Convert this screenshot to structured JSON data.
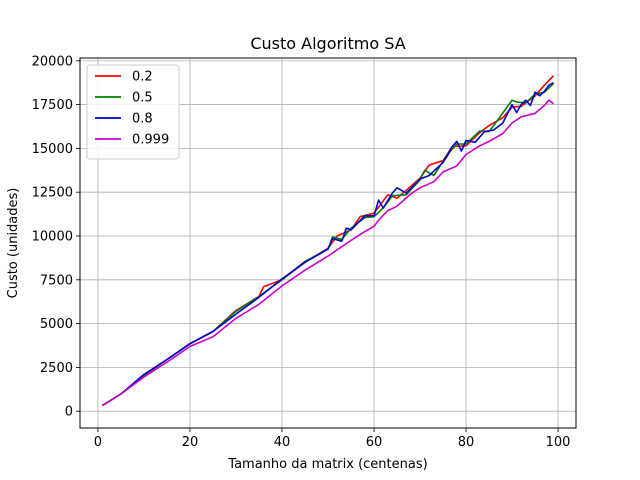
{
  "chart_data": {
    "type": "line",
    "title": "Custo Algoritmo SA",
    "xlabel": "Tamanho da matrix (centenas)",
    "ylabel": "Custo (unidades)",
    "xlim": [
      -3.9,
      103.9
    ],
    "ylim": [
      -959,
      20159
    ],
    "xticks": [
      0,
      20,
      40,
      60,
      80,
      100
    ],
    "yticks": [
      0,
      2500,
      5000,
      7500,
      10000,
      12500,
      15000,
      17500,
      20000
    ],
    "grid": true,
    "legend_position": "top-left",
    "series": [
      {
        "name": "0.2",
        "color": "#ff0000",
        "points": [
          [
            1,
            330
          ],
          [
            5,
            980
          ],
          [
            10,
            2050
          ],
          [
            15,
            2950
          ],
          [
            20,
            3850
          ],
          [
            25,
            4550
          ],
          [
            30,
            5750
          ],
          [
            35,
            6550
          ],
          [
            36,
            7100
          ],
          [
            40,
            7500
          ],
          [
            45,
            8500
          ],
          [
            50,
            9300
          ],
          [
            52,
            10000
          ],
          [
            55,
            10350
          ],
          [
            57,
            11100
          ],
          [
            60,
            11300
          ],
          [
            63,
            12350
          ],
          [
            65,
            12150
          ],
          [
            70,
            13300
          ],
          [
            72,
            14050
          ],
          [
            75,
            14300
          ],
          [
            77,
            15100
          ],
          [
            80,
            15150
          ],
          [
            83,
            15900
          ],
          [
            85,
            16300
          ],
          [
            88,
            16750
          ],
          [
            90,
            17350
          ],
          [
            92,
            17400
          ],
          [
            95,
            18000
          ],
          [
            97,
            18600
          ],
          [
            99,
            19150
          ]
        ]
      },
      {
        "name": "0.5",
        "color": "#008000",
        "points": [
          [
            1,
            330
          ],
          [
            5,
            980
          ],
          [
            10,
            2050
          ],
          [
            15,
            2950
          ],
          [
            20,
            3850
          ],
          [
            25,
            4550
          ],
          [
            30,
            5700
          ],
          [
            35,
            6550
          ],
          [
            40,
            7500
          ],
          [
            45,
            8550
          ],
          [
            50,
            9250
          ],
          [
            51,
            9950
          ],
          [
            53,
            9800
          ],
          [
            55,
            10450
          ],
          [
            58,
            11050
          ],
          [
            60,
            11100
          ],
          [
            62,
            11600
          ],
          [
            64,
            12300
          ],
          [
            67,
            12350
          ],
          [
            70,
            13200
          ],
          [
            71,
            13750
          ],
          [
            73,
            13450
          ],
          [
            76,
            14650
          ],
          [
            78,
            15250
          ],
          [
            80,
            15250
          ],
          [
            83,
            16000
          ],
          [
            85,
            15950
          ],
          [
            87,
            16650
          ],
          [
            90,
            17750
          ],
          [
            91,
            17650
          ],
          [
            93,
            17600
          ],
          [
            95,
            18100
          ],
          [
            97,
            18200
          ],
          [
            99,
            18700
          ]
        ]
      },
      {
        "name": "0.8",
        "color": "#0000cc",
        "points": [
          [
            1,
            330
          ],
          [
            5,
            980
          ],
          [
            10,
            2100
          ],
          [
            15,
            2950
          ],
          [
            20,
            3850
          ],
          [
            25,
            4550
          ],
          [
            30,
            5550
          ],
          [
            35,
            6500
          ],
          [
            40,
            7550
          ],
          [
            45,
            8500
          ],
          [
            50,
            9250
          ],
          [
            51,
            9850
          ],
          [
            53,
            9700
          ],
          [
            54,
            10450
          ],
          [
            55,
            10350
          ],
          [
            58,
            11150
          ],
          [
            60,
            11150
          ],
          [
            61,
            12050
          ],
          [
            62,
            11600
          ],
          [
            64,
            12450
          ],
          [
            65,
            12750
          ],
          [
            67,
            12450
          ],
          [
            70,
            13250
          ],
          [
            72,
            13450
          ],
          [
            75,
            14200
          ],
          [
            76,
            14600
          ],
          [
            77,
            15100
          ],
          [
            78,
            15400
          ],
          [
            79,
            14850
          ],
          [
            80,
            15450
          ],
          [
            82,
            15350
          ],
          [
            84,
            15950
          ],
          [
            86,
            16050
          ],
          [
            88,
            16450
          ],
          [
            90,
            17500
          ],
          [
            91,
            17050
          ],
          [
            92,
            17500
          ],
          [
            93,
            17750
          ],
          [
            94,
            17450
          ],
          [
            95,
            18200
          ],
          [
            96,
            18000
          ],
          [
            97,
            18250
          ],
          [
            98,
            18600
          ],
          [
            99,
            18750
          ]
        ]
      },
      {
        "name": "0.999",
        "color": "#cc00cc",
        "points": [
          [
            1,
            330
          ],
          [
            5,
            980
          ],
          [
            10,
            1950
          ],
          [
            15,
            2800
          ],
          [
            20,
            3700
          ],
          [
            25,
            4250
          ],
          [
            30,
            5300
          ],
          [
            35,
            6100
          ],
          [
            40,
            7150
          ],
          [
            45,
            8050
          ],
          [
            50,
            8850
          ],
          [
            55,
            9750
          ],
          [
            58,
            10250
          ],
          [
            60,
            10550
          ],
          [
            61,
            10900
          ],
          [
            63,
            11450
          ],
          [
            65,
            11700
          ],
          [
            68,
            12400
          ],
          [
            70,
            12750
          ],
          [
            73,
            13100
          ],
          [
            75,
            13650
          ],
          [
            78,
            14000
          ],
          [
            80,
            14650
          ],
          [
            83,
            15150
          ],
          [
            85,
            15400
          ],
          [
            88,
            15850
          ],
          [
            90,
            16450
          ],
          [
            92,
            16800
          ],
          [
            95,
            17000
          ],
          [
            97,
            17450
          ],
          [
            98,
            17750
          ],
          [
            99,
            17550
          ]
        ]
      }
    ]
  }
}
